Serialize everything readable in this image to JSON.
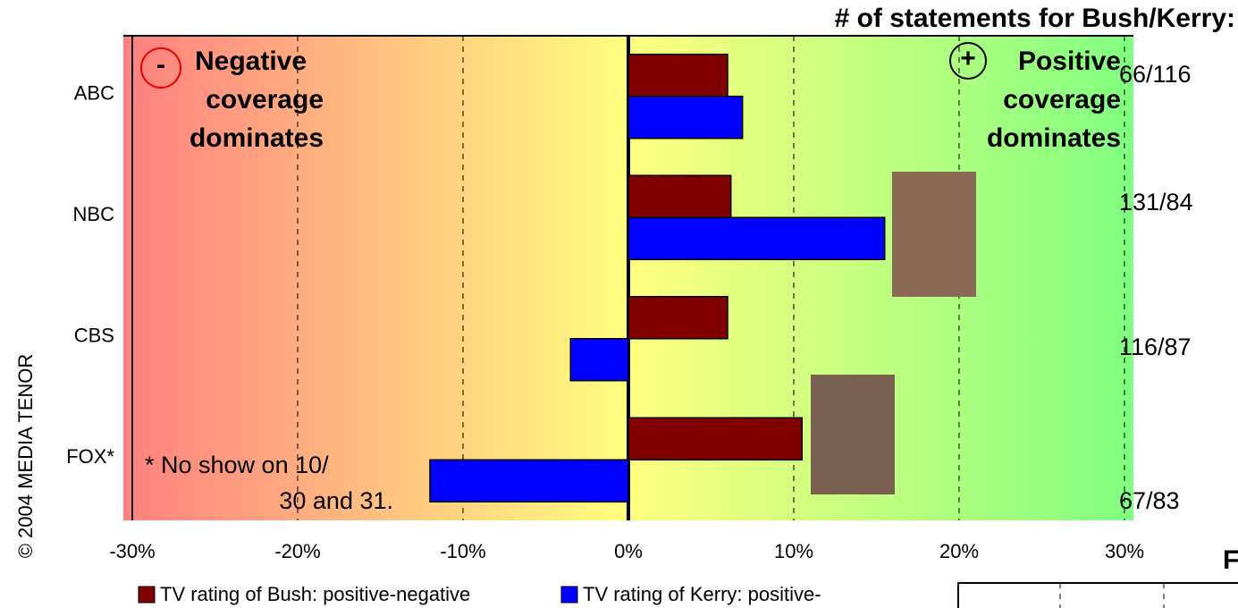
{
  "chart_data": {
    "type": "hbar",
    "header": "# of statements for Bush/Kerry:",
    "categories": [
      "ABC",
      "NBC",
      "CBS",
      "FOX*"
    ],
    "statement_counts": [
      "66/116",
      "131/84",
      "116/87",
      "67/83"
    ],
    "series": [
      {
        "name": "TV rating of Bush: positive-negative",
        "color": "#800000",
        "values": [
          6,
          6.2,
          6,
          10.5
        ]
      },
      {
        "name": "TV rating of Kerry: positive-",
        "color": "#0000ff",
        "values": [
          6.9,
          15.5,
          -3.5,
          -12
        ]
      }
    ],
    "xlim": [
      -30,
      30
    ],
    "xticks": [
      {
        "value": -30,
        "label": "-30%"
      },
      {
        "value": -20,
        "label": "-20%"
      },
      {
        "value": -10,
        "label": "-10%"
      },
      {
        "value": 0,
        "label": "0%"
      },
      {
        "value": 10,
        "label": "10%"
      },
      {
        "value": 20,
        "label": "20%"
      },
      {
        "value": 30,
        "label": "30%"
      }
    ],
    "grid": true,
    "negative_note": {
      "symbol": "-",
      "lines": [
        "Negative",
        "coverage",
        "dominates"
      ]
    },
    "positive_note": {
      "symbol": "+",
      "lines": [
        "Positive",
        "coverage",
        "dominates"
      ]
    },
    "footnote": [
      "* No show on 10/",
      "30 and 31."
    ],
    "copyright": "© 2004 MEDIA TENOR",
    "cut_text": "F"
  }
}
